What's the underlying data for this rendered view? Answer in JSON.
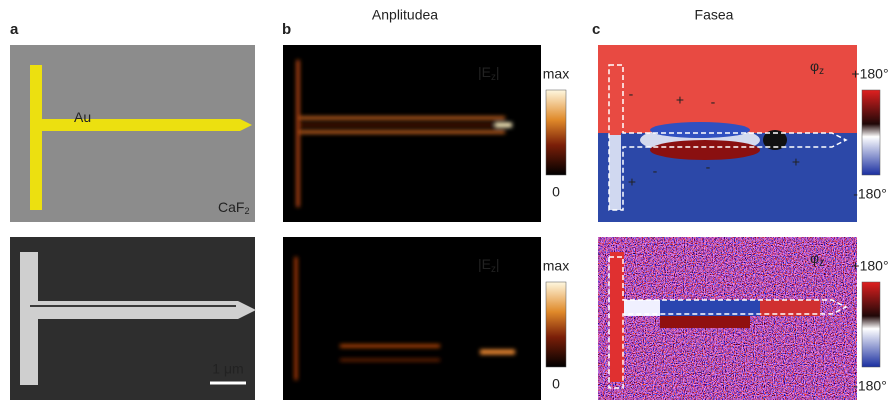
{
  "panel_a": {
    "label": "a",
    "material": "Au",
    "substrate": "CaF",
    "substrate_sub": "2",
    "scale_bar": "1 μm"
  },
  "panel_b": {
    "label": "b",
    "title": "Anplitudea",
    "field": "|E",
    "field_sub": "z",
    "field_end": "|",
    "colorbar_max": "max",
    "colorbar_min": "0"
  },
  "panel_c": {
    "label": "c",
    "title": "Fasea",
    "phase": "φ",
    "phase_sub": "z",
    "colorbar_max": "+180°",
    "colorbar_min": "-180°",
    "signs": [
      "-",
      "+",
      "-",
      "-",
      "-",
      "+",
      "+"
    ]
  }
}
